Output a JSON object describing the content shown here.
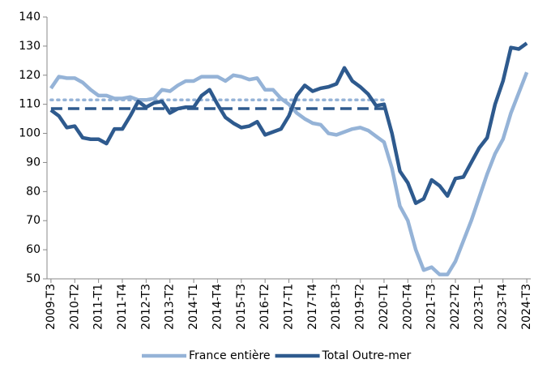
{
  "chart_data": {
    "type": "line",
    "categories": [
      "2009-T3",
      null,
      null,
      "2010-T2",
      null,
      null,
      "2011-T1",
      null,
      null,
      "2011-T4",
      null,
      null,
      "2012-T3",
      null,
      null,
      "2013-T2",
      null,
      null,
      "2014-T1",
      null,
      null,
      "2014-T4",
      null,
      null,
      "2015-T3",
      null,
      null,
      "2016-T2",
      null,
      null,
      "2017-T1",
      null,
      null,
      "2017-T4",
      null,
      null,
      "2018-T3",
      null,
      null,
      "2019-T2",
      null,
      null,
      "2020-T1",
      null,
      null,
      "2020-T4",
      null,
      null,
      "2021-T3",
      null,
      null,
      "2022-T2",
      null,
      null,
      "2023-T1",
      null,
      null,
      "2023-T4",
      null,
      null,
      "2024-T3"
    ],
    "series": [
      {
        "name": "France entière",
        "color": "#95b3d7",
        "values": [
          115.5,
          119.5,
          119,
          119,
          117.5,
          115,
          113,
          113,
          112,
          112,
          112.5,
          111.5,
          111.5,
          112,
          115,
          114.5,
          116.5,
          118,
          118,
          119.5,
          119.5,
          119.5,
          118,
          120,
          119.5,
          118.5,
          119,
          115,
          115,
          112,
          110,
          107,
          105,
          103.5,
          103,
          100,
          99.5,
          100.5,
          101.5,
          102,
          101,
          99,
          97,
          88,
          75,
          70,
          60,
          53,
          54,
          51.5,
          51.5,
          56,
          63,
          70,
          78,
          86,
          93,
          98,
          107,
          114,
          121
        ]
      },
      {
        "name": "Total Outre-mer",
        "color": "#2e5a8e",
        "values": [
          108,
          106,
          102,
          102.5,
          98.5,
          98,
          98,
          96.5,
          101.5,
          101.5,
          106,
          111,
          109,
          110.5,
          111,
          107,
          108.5,
          109,
          109,
          113,
          115,
          110,
          105.5,
          103.5,
          102,
          102.5,
          104,
          99.5,
          100.5,
          101.5,
          106,
          113,
          116.5,
          114.5,
          115.5,
          116,
          117,
          122.5,
          118,
          116,
          113.5,
          109.5,
          110,
          100,
          87,
          83,
          76,
          77.5,
          84,
          82,
          78.5,
          84.5,
          85,
          90,
          95,
          98.5,
          110,
          118,
          129.5,
          129,
          131
        ]
      },
      {
        "color": "#95b3d7",
        "dash": "dotted",
        "values": [
          111.5,
          111.5,
          111.5,
          111.5,
          111.5,
          111.5,
          111.5,
          111.5,
          111.5,
          111.5,
          111.5,
          111.5,
          111.5,
          111.5,
          111.5,
          111.5,
          111.5,
          111.5,
          111.5,
          111.5,
          111.5,
          111.5,
          111.5,
          111.5,
          111.5,
          111.5,
          111.5,
          111.5,
          111.5,
          111.5,
          111.5,
          111.5,
          111.5,
          111.5,
          111.5,
          111.5,
          111.5,
          111.5,
          111.5,
          111.5,
          111.5,
          111.5,
          111.5,
          null,
          null,
          null,
          null,
          null,
          null,
          null,
          null,
          null,
          null,
          null,
          null,
          null,
          null,
          null,
          null,
          null,
          null
        ]
      },
      {
        "color": "#2e5a8e",
        "dash": "dashed",
        "values": [
          108.5,
          108.5,
          108.5,
          108.5,
          108.5,
          108.5,
          108.5,
          108.5,
          108.5,
          108.5,
          108.5,
          108.5,
          108.5,
          108.5,
          108.5,
          108.5,
          108.5,
          108.5,
          108.5,
          108.5,
          108.5,
          108.5,
          108.5,
          108.5,
          108.5,
          108.5,
          108.5,
          108.5,
          108.5,
          108.5,
          108.5,
          108.5,
          108.5,
          108.5,
          108.5,
          108.5,
          108.5,
          108.5,
          108.5,
          108.5,
          108.5,
          108.5,
          108.5,
          null,
          null,
          null,
          null,
          null,
          null,
          null,
          null,
          null,
          null,
          null,
          null,
          null,
          null,
          null,
          null,
          null,
          null
        ]
      }
    ],
    "ylim": [
      50,
      140
    ],
    "yticks": [
      50,
      60,
      70,
      80,
      90,
      100,
      110,
      120,
      130,
      140
    ],
    "grid": false,
    "legend": "bottom"
  }
}
